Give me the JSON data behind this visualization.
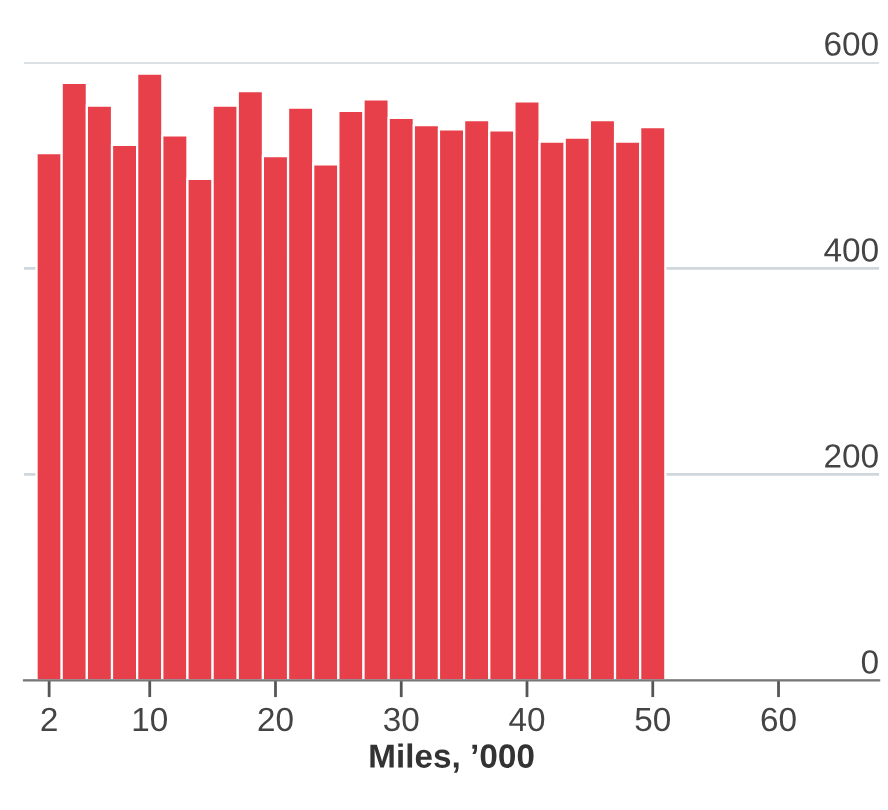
{
  "chart_data": {
    "type": "histogram",
    "xlabel": "Miles, ’000",
    "bins": [
      1,
      3,
      5,
      7,
      9,
      11,
      13,
      15,
      17,
      19,
      21,
      23,
      25,
      27,
      29,
      31,
      33,
      35,
      37,
      39,
      41,
      43,
      45,
      47,
      49,
      51
    ],
    "values": [
      512,
      580,
      558,
      520,
      589,
      529,
      487,
      558,
      572,
      509,
      556,
      501,
      553,
      564,
      546,
      539,
      535,
      544,
      534,
      562,
      523,
      527,
      544,
      523,
      537
    ],
    "color": "#e8404a",
    "xlim": [
      0,
      68
    ],
    "xticks": [
      2,
      10,
      20,
      30,
      40,
      50,
      60
    ],
    "ylim": [
      0,
      600
    ],
    "yticks": [
      0,
      200,
      400,
      600
    ],
    "grid": "y"
  }
}
